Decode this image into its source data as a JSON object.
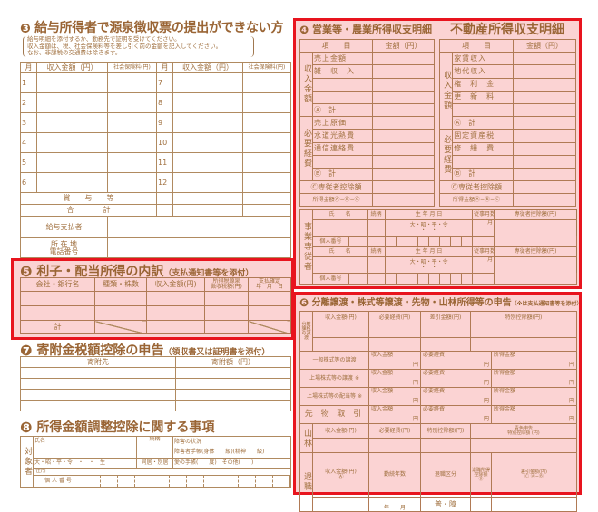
{
  "colors": {
    "line": "#a07850",
    "text": "#9a6535",
    "highlight_border": "#e8141e",
    "highlight_fill": "#fbd3d3"
  },
  "s3": {
    "num": "❸",
    "title": "給与所得者で源泉徴収票の提出ができない方",
    "note": [
      "給与明細を添付するか、勤務先で証明を受けてください。",
      "収入金額は、税、社会保険料等を差し引く前の金額を記入してください。",
      "なお、非課税の交通費は除きます。"
    ],
    "headers": [
      "月",
      "収入金額（円）",
      "社会保険料(円)",
      "月",
      "収入金額（円）",
      "社会保険料(円)"
    ],
    "months_left": [
      "1",
      "2",
      "3",
      "4",
      "5",
      "6"
    ],
    "months_right": [
      "7",
      "8",
      "9",
      "10",
      "11",
      "12"
    ],
    "bonus": "賞　　与　　等",
    "total": "合　　　　計",
    "payer": "給与支払者",
    "address": "所 在 地\n電話番号"
  },
  "s4": {
    "num": "❹",
    "title_left": "営業等・農業所得収支明細",
    "title_right": "不動産所得収支明細",
    "h_item": "項　　目",
    "h_amount": "金額（円）",
    "income": "収入金額",
    "expense": "必要経費",
    "left_income": [
      "売上金額",
      "雑　収　入",
      "",
      ""
    ],
    "left_expense": [
      "売上原価",
      "水道光熱費",
      "通信連絡費",
      ""
    ],
    "right_income": [
      "家賃収入",
      "地代収入",
      "権　利　金",
      "更　新　料",
      ""
    ],
    "right_expense": [
      "固定資産税",
      "修　繕　費",
      ""
    ],
    "sum_a": "Ⓐ　計",
    "sum_b": "Ⓑ　計",
    "deduct": "Ⓒ専従者控除額",
    "net": "所得金額Ⓐ−Ⓑ−Ⓒ",
    "emp": {
      "label": "事業専従者",
      "name": "氏　　名",
      "rel": "続柄",
      "birth": "生 年 月 日",
      "months": "従事月数",
      "deduction": "専従者控除額(円)",
      "era": "大・昭・平・令",
      "dots": "・　・",
      "month_unit": "月",
      "mynumber": "個人番号"
    }
  },
  "s5": {
    "num": "❺",
    "title": "利子・配当所得の内訳",
    "sub": "（支払通知書等を添付）",
    "headers": [
      "会社・銀行名",
      "種類・株数",
      "収入金額(円)",
      "所得税源泉\n徴収税額(円)",
      "支払確定\n年　月　日"
    ],
    "total": "計"
  },
  "s6": {
    "num": "❻",
    "title": "分離譲渡・株式等譲渡・先物・山林所得等の申告",
    "sub": "（※は支払通知書等を添付）",
    "headers": [
      "収入金額(円)",
      "必要経費(円)",
      "差引金額(円)",
      "特別控除額(円)",
      "所得金額(円)"
    ],
    "sep_label": "分離課税の譲渡",
    "rows": [
      "一般株式等の譲渡",
      "上場株式等の譲渡 ※",
      "上場株式等の配当等 ※",
      "先 物 取 引"
    ],
    "cell_labels": [
      "収入金額",
      "必要経費",
      "所得金額"
    ],
    "yen": "円",
    "forest": "山林",
    "forest_headers": [
      "収入金額(円)",
      "必要経費(円)",
      "特別控除額(円)",
      "青色申告\n特別控除額 (円)",
      "所得金額(円)"
    ],
    "retire": "退職",
    "retire_headers": [
      "収入金額(円)\nⒶ",
      "勤続年数",
      "退職区分",
      "退職所得\n控除額 Ⓑ",
      "差引金額(円)\nⒸ Ⓐ−Ⓑ",
      "所得金額(円)\nⒸ ÷ 2"
    ],
    "years": "年　　月",
    "kubun": "普・障"
  },
  "s7": {
    "num": "❼",
    "title": "寄附金税額控除の申告",
    "sub": "（領収書又は証明書を添付）",
    "headers": [
      "寄附先",
      "寄附額（円）"
    ]
  },
  "s8": {
    "num": "❽",
    "title": "所得金額調整控除に関する事項",
    "label": "対象者",
    "name": "氏名",
    "rel": "続柄",
    "disability": "障害の状況",
    "handbook": "障害者手帳(身体　　級)(精神　　級)",
    "ryoiku": "愛の手帳(　　度)　その他(　　)",
    "era": "大・昭・平・令　・　・　生",
    "living": "同居・別居",
    "address": "住所",
    "mynumber": "個 人 番 号"
  }
}
